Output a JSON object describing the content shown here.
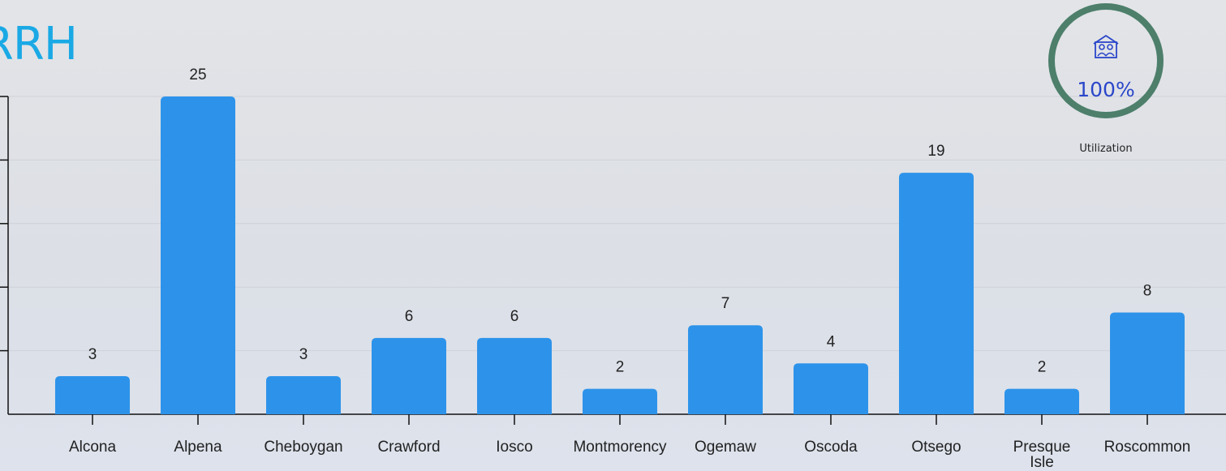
{
  "chart_data": {
    "type": "bar",
    "title": "RRH",
    "categories": [
      "Alcona",
      "Alpena",
      "Cheboygan",
      "Crawford",
      "Iosco",
      "Montmorency",
      "Ogemaw",
      "Oscoda",
      "Otsego",
      "Presque Isle",
      "Roscommon"
    ],
    "values": [
      3,
      25,
      3,
      6,
      6,
      2,
      7,
      4,
      19,
      2,
      8
    ],
    "ylim": [
      0,
      25
    ],
    "grid": true,
    "bar_color": "#2d93ea"
  },
  "utilization": {
    "value": "100%",
    "label": "Utilization",
    "ring_color": "#4d7f6b",
    "value_color": "#2b47c9",
    "icon": "house-people-icon"
  }
}
